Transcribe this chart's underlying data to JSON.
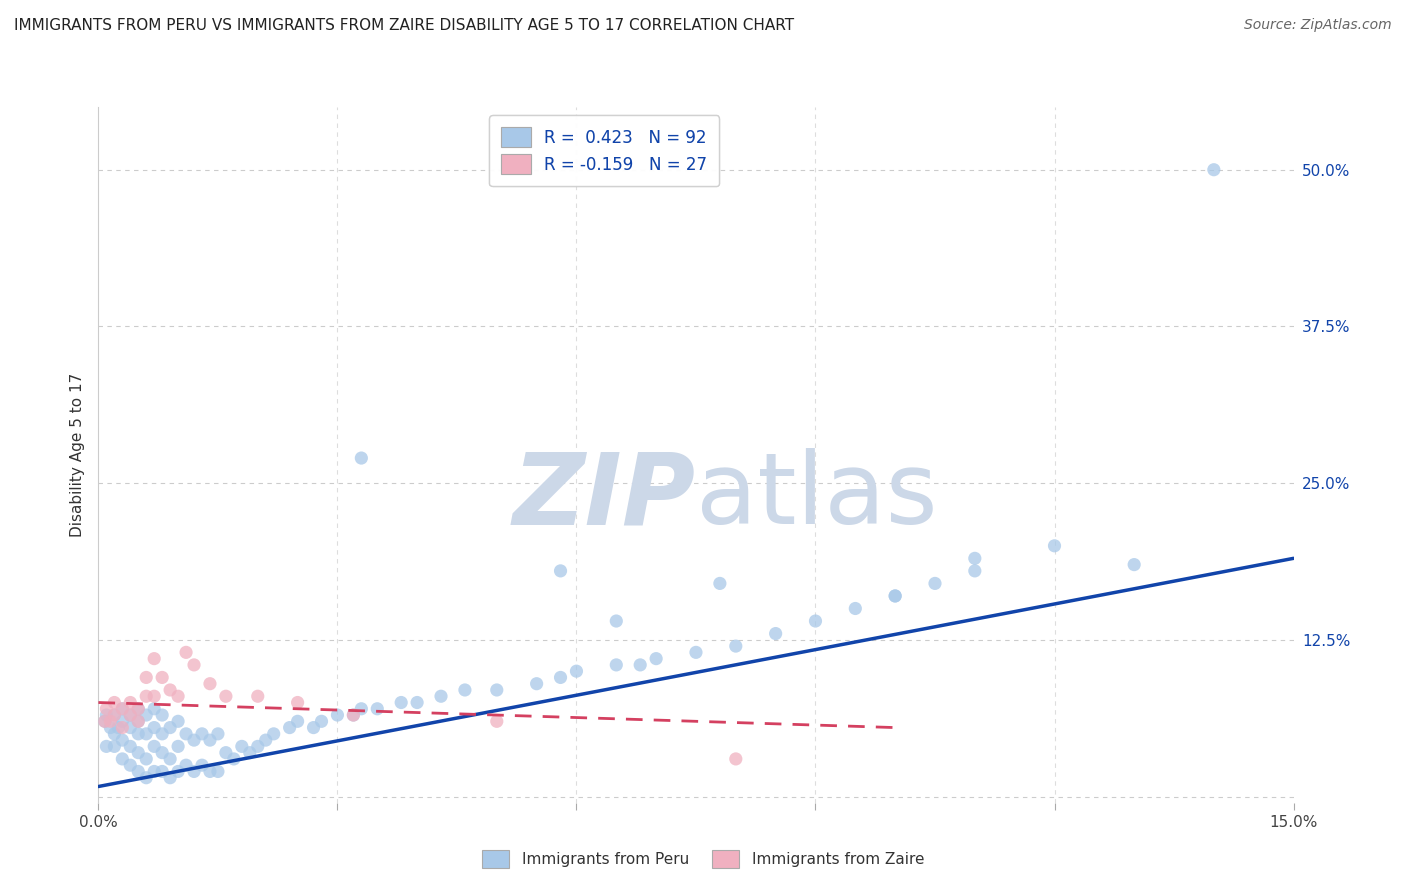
{
  "title": "IMMIGRANTS FROM PERU VS IMMIGRANTS FROM ZAIRE DISABILITY AGE 5 TO 17 CORRELATION CHART",
  "source": "Source: ZipAtlas.com",
  "ylabel": "Disability Age 5 to 17",
  "xlim": [
    0.0,
    0.15
  ],
  "ylim": [
    -0.005,
    0.55
  ],
  "ytick_vals_right": [
    0.5,
    0.375,
    0.25,
    0.125,
    0.0
  ],
  "ytick_labels_right": [
    "50.0%",
    "37.5%",
    "25.0%",
    "12.5%",
    ""
  ],
  "xtick_vals": [
    0.0,
    0.03,
    0.06,
    0.09,
    0.12,
    0.15
  ],
  "xtick_labels": [
    "0.0%",
    "",
    "",
    "",
    "",
    "15.0%"
  ],
  "peru_R": 0.423,
  "peru_N": 92,
  "zaire_R": -0.159,
  "zaire_N": 27,
  "peru_color": "#a8c8e8",
  "peru_line_color": "#1144aa",
  "zaire_color": "#f0b0c0",
  "zaire_line_color": "#d44060",
  "background_color": "#ffffff",
  "grid_color": "#cccccc",
  "watermark_color": "#ccd8e8",
  "legend_label_peru": "Immigrants from Peru",
  "legend_label_zaire": "Immigrants from Zaire",
  "peru_scatter_x": [
    0.0008,
    0.001,
    0.001,
    0.0015,
    0.002,
    0.002,
    0.002,
    0.0025,
    0.003,
    0.003,
    0.003,
    0.003,
    0.004,
    0.004,
    0.004,
    0.004,
    0.005,
    0.005,
    0.005,
    0.005,
    0.005,
    0.006,
    0.006,
    0.006,
    0.006,
    0.007,
    0.007,
    0.007,
    0.007,
    0.008,
    0.008,
    0.008,
    0.008,
    0.009,
    0.009,
    0.009,
    0.01,
    0.01,
    0.01,
    0.011,
    0.011,
    0.012,
    0.012,
    0.013,
    0.013,
    0.014,
    0.014,
    0.015,
    0.015,
    0.016,
    0.017,
    0.018,
    0.019,
    0.02,
    0.021,
    0.022,
    0.024,
    0.025,
    0.027,
    0.028,
    0.03,
    0.032,
    0.033,
    0.035,
    0.038,
    0.04,
    0.043,
    0.046,
    0.05,
    0.055,
    0.058,
    0.06,
    0.065,
    0.068,
    0.07,
    0.075,
    0.08,
    0.085,
    0.09,
    0.095,
    0.1,
    0.105,
    0.11,
    0.033,
    0.058,
    0.065,
    0.078,
    0.1,
    0.11,
    0.12,
    0.13,
    0.14
  ],
  "peru_scatter_y": [
    0.06,
    0.065,
    0.04,
    0.055,
    0.04,
    0.05,
    0.065,
    0.055,
    0.03,
    0.045,
    0.06,
    0.07,
    0.025,
    0.04,
    0.055,
    0.065,
    0.02,
    0.035,
    0.05,
    0.06,
    0.07,
    0.015,
    0.03,
    0.05,
    0.065,
    0.02,
    0.04,
    0.055,
    0.07,
    0.02,
    0.035,
    0.05,
    0.065,
    0.015,
    0.03,
    0.055,
    0.02,
    0.04,
    0.06,
    0.025,
    0.05,
    0.02,
    0.045,
    0.025,
    0.05,
    0.02,
    0.045,
    0.02,
    0.05,
    0.035,
    0.03,
    0.04,
    0.035,
    0.04,
    0.045,
    0.05,
    0.055,
    0.06,
    0.055,
    0.06,
    0.065,
    0.065,
    0.07,
    0.07,
    0.075,
    0.075,
    0.08,
    0.085,
    0.085,
    0.09,
    0.095,
    0.1,
    0.105,
    0.105,
    0.11,
    0.115,
    0.12,
    0.13,
    0.14,
    0.15,
    0.16,
    0.17,
    0.18,
    0.27,
    0.18,
    0.14,
    0.17,
    0.16,
    0.19,
    0.2,
    0.185,
    0.5
  ],
  "zaire_scatter_x": [
    0.0008,
    0.001,
    0.0015,
    0.002,
    0.002,
    0.003,
    0.003,
    0.004,
    0.004,
    0.005,
    0.005,
    0.006,
    0.006,
    0.007,
    0.007,
    0.008,
    0.009,
    0.01,
    0.011,
    0.012,
    0.014,
    0.016,
    0.02,
    0.025,
    0.032,
    0.05,
    0.08
  ],
  "zaire_scatter_y": [
    0.06,
    0.07,
    0.06,
    0.065,
    0.075,
    0.055,
    0.07,
    0.065,
    0.075,
    0.06,
    0.07,
    0.08,
    0.095,
    0.08,
    0.11,
    0.095,
    0.085,
    0.08,
    0.115,
    0.105,
    0.09,
    0.08,
    0.08,
    0.075,
    0.065,
    0.06,
    0.03
  ],
  "peru_trend_x": [
    0.0,
    0.15
  ],
  "peru_trend_y": [
    0.008,
    0.19
  ],
  "zaire_trend_x": [
    0.0,
    0.1
  ],
  "zaire_trend_y": [
    0.075,
    0.055
  ]
}
